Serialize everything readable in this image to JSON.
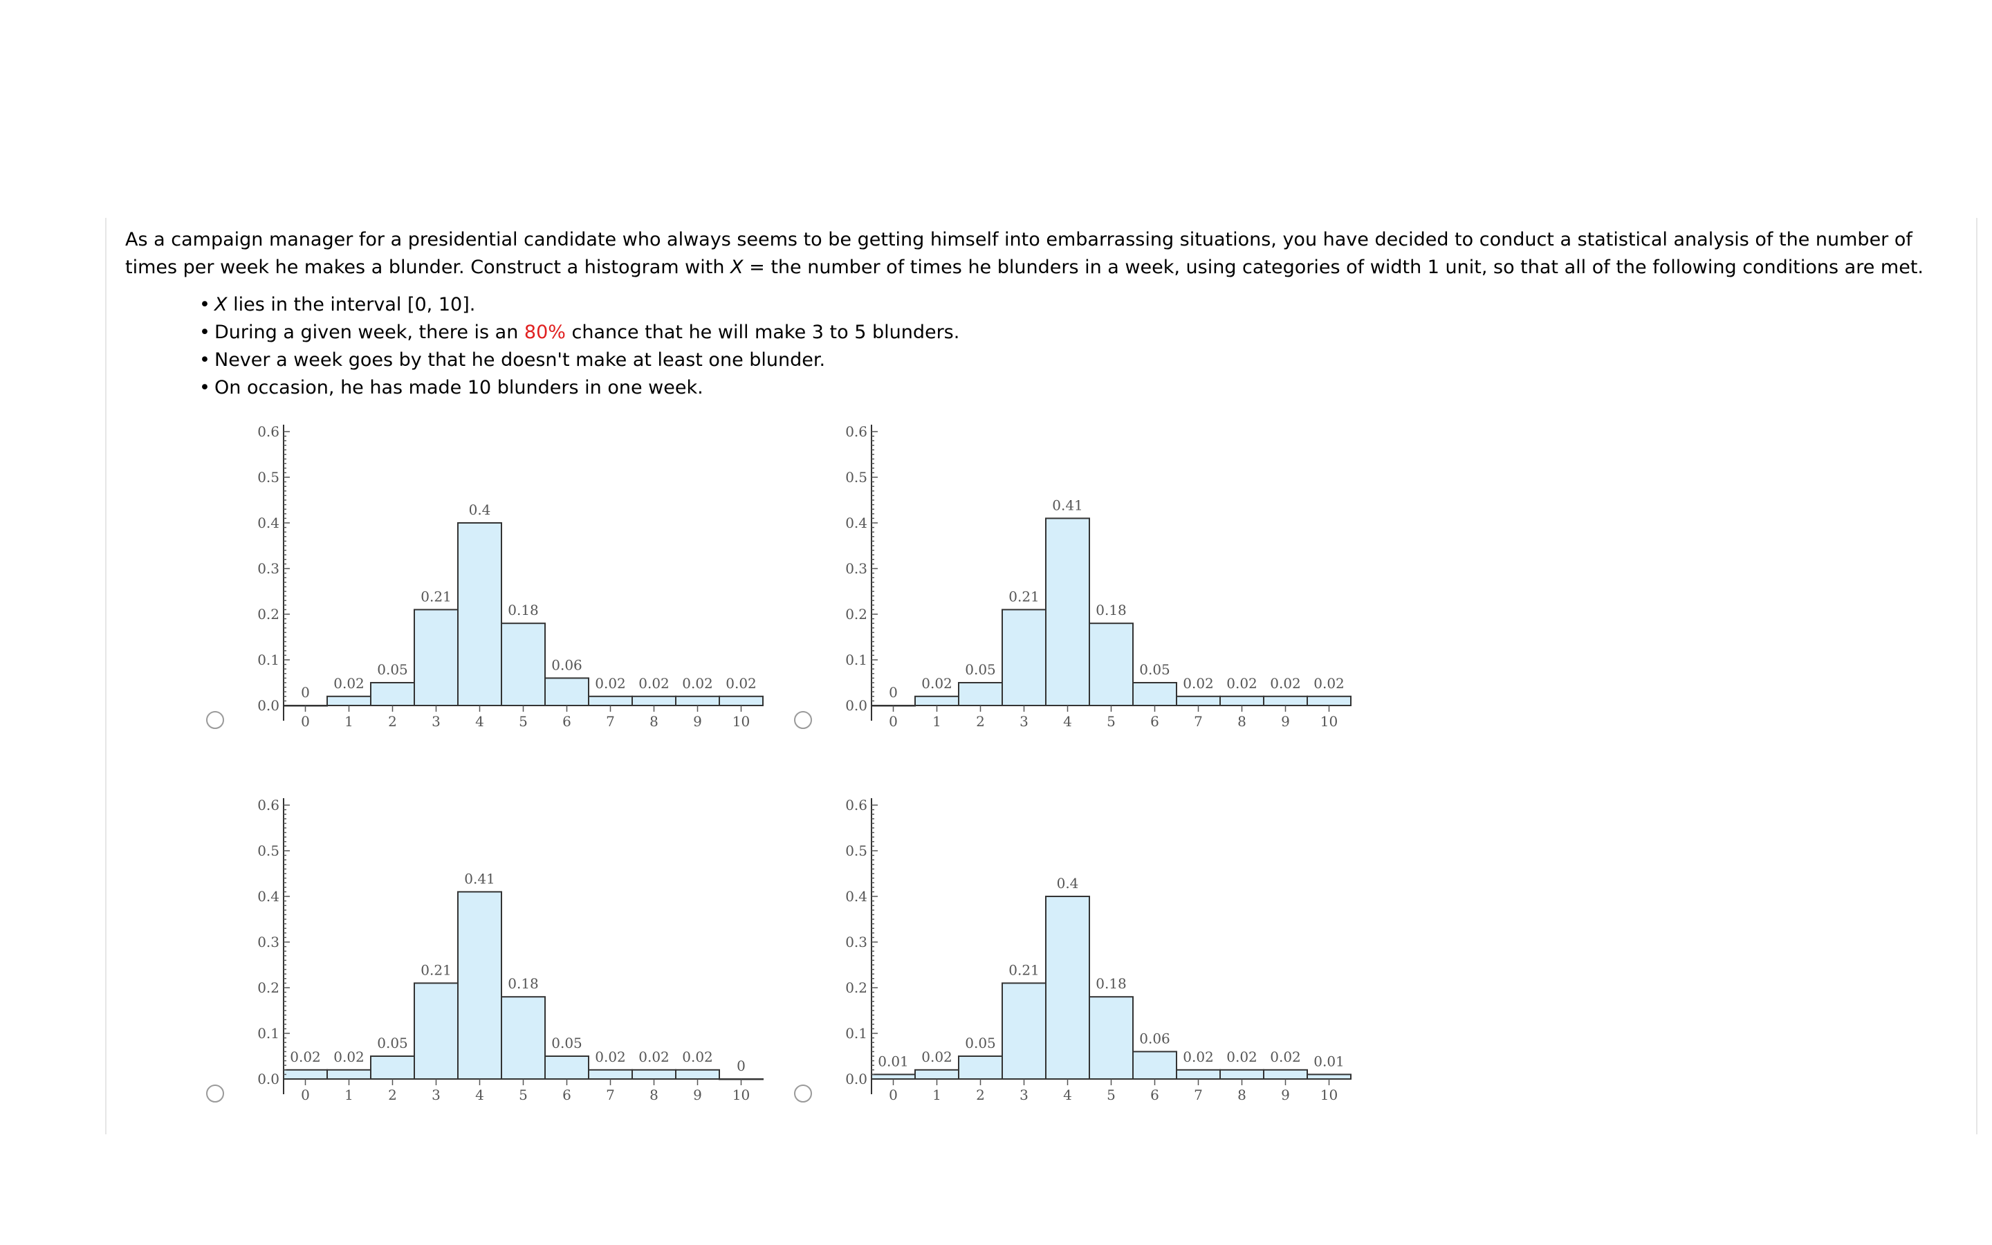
{
  "question": {
    "intro_part1": "As a campaign manager for a presidential candidate who always seems to be getting himself into embarrassing situations, you have decided to conduct a statistical analysis of the number of times per week he makes a blunder. Construct a histogram with ",
    "intro_var": "X",
    "intro_part2": " = the number of times he blunders in a week, using categories of width 1 unit, so that all of the following conditions are met.",
    "conditions": [
      {
        "var": "X",
        "text": " lies in the interval [0, 10]."
      },
      {
        "before": "During a given week, there is an ",
        "highlight": "80%",
        "after": " chance that he will make 3 to 5 blunders."
      },
      {
        "text": "Never a week goes by that he doesn't make at least one blunder."
      },
      {
        "text": "On occasion, he has made 10 blunders in one week."
      }
    ]
  },
  "colors": {
    "bar_fill": "#d6eefa",
    "bar_stroke": "#333333",
    "highlight": "#e02020"
  },
  "chart_data": [
    {
      "type": "bar",
      "categories": [
        "0",
        "1",
        "2",
        "3",
        "4",
        "5",
        "6",
        "7",
        "8",
        "9",
        "10"
      ],
      "values": [
        0,
        0.02,
        0.05,
        0.21,
        0.4,
        0.18,
        0.06,
        0.02,
        0.02,
        0.02,
        0.02
      ],
      "data_labels": [
        "0",
        "0.02",
        "0.05",
        "0.21",
        "0.4",
        "0.18",
        "0.06",
        "0.02",
        "0.02",
        "0.02",
        "0.02"
      ],
      "yticks": [
        "0.0",
        "0.1",
        "0.2",
        "0.3",
        "0.4",
        "0.5",
        "0.6"
      ],
      "ylim": [
        0,
        0.6
      ],
      "xlim": [
        0,
        10.5
      ]
    },
    {
      "type": "bar",
      "categories": [
        "0",
        "1",
        "2",
        "3",
        "4",
        "5",
        "6",
        "7",
        "8",
        "9",
        "10"
      ],
      "values": [
        0,
        0.02,
        0.05,
        0.21,
        0.41,
        0.18,
        0.05,
        0.02,
        0.02,
        0.02,
        0.02
      ],
      "data_labels": [
        "0",
        "0.02",
        "0.05",
        "0.21",
        "0.41",
        "0.18",
        "0.05",
        "0.02",
        "0.02",
        "0.02",
        "0.02"
      ],
      "yticks": [
        "0.0",
        "0.1",
        "0.2",
        "0.3",
        "0.4",
        "0.5",
        "0.6"
      ],
      "ylim": [
        0,
        0.6
      ],
      "xlim": [
        0,
        10.5
      ]
    },
    {
      "type": "bar",
      "categories": [
        "0",
        "1",
        "2",
        "3",
        "4",
        "5",
        "6",
        "7",
        "8",
        "9",
        "10"
      ],
      "values": [
        0.02,
        0.02,
        0.05,
        0.21,
        0.41,
        0.18,
        0.05,
        0.02,
        0.02,
        0.02,
        0
      ],
      "data_labels": [
        "0.02",
        "0.02",
        "0.05",
        "0.21",
        "0.41",
        "0.18",
        "0.05",
        "0.02",
        "0.02",
        "0.02",
        "0"
      ],
      "yticks": [
        "0.0",
        "0.1",
        "0.2",
        "0.3",
        "0.4",
        "0.5",
        "0.6"
      ],
      "ylim": [
        0,
        0.6
      ],
      "xlim": [
        0,
        10.5
      ]
    },
    {
      "type": "bar",
      "categories": [
        "0",
        "1",
        "2",
        "3",
        "4",
        "5",
        "6",
        "7",
        "8",
        "9",
        "10"
      ],
      "values": [
        0.01,
        0.02,
        0.05,
        0.21,
        0.4,
        0.18,
        0.06,
        0.02,
        0.02,
        0.02,
        0.01
      ],
      "data_labels": [
        "0.01",
        "0.02",
        "0.05",
        "0.21",
        "0.4",
        "0.18",
        "0.06",
        "0.02",
        "0.02",
        "0.02",
        "0.01"
      ],
      "yticks": [
        "0.0",
        "0.1",
        "0.2",
        "0.3",
        "0.4",
        "0.5",
        "0.6"
      ],
      "ylim": [
        0,
        0.6
      ],
      "xlim": [
        0,
        10.5
      ]
    }
  ]
}
